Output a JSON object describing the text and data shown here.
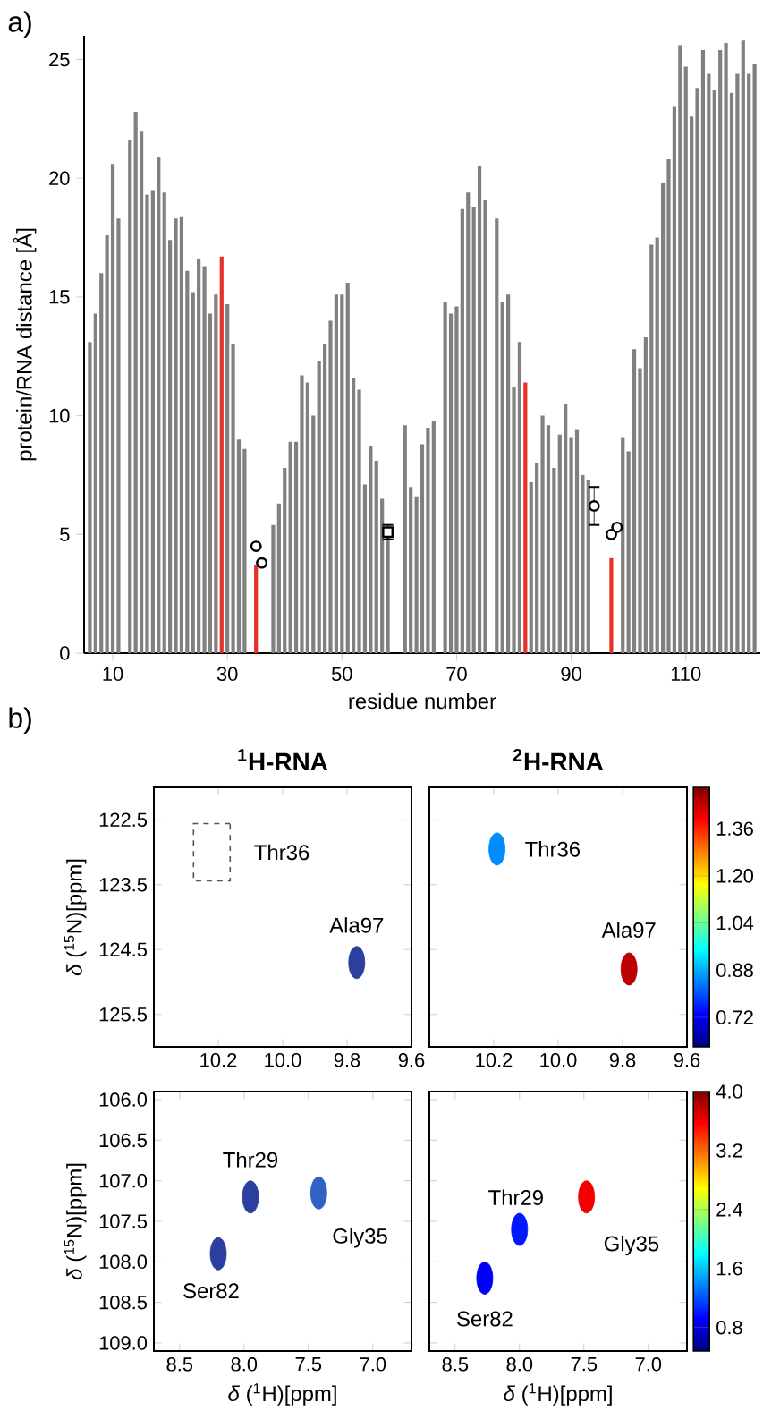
{
  "chart_data": [
    {
      "type": "bar",
      "xlabel": "residue number",
      "ylabel": "protein/RNA distance [Å]",
      "annotations": [
        "a)"
      ],
      "xlim": [
        5,
        123
      ],
      "xticks": [
        10,
        30,
        50,
        70,
        90,
        110
      ],
      "ylim": [
        0,
        26
      ],
      "yticks": [
        0,
        5,
        10,
        15,
        20,
        25
      ],
      "series": [
        {
          "x": [
            6,
            7,
            8,
            9,
            10,
            11,
            12,
            13,
            14,
            15,
            16,
            17,
            18,
            19,
            20,
            21,
            22,
            23,
            24,
            25,
            26,
            27,
            28,
            29,
            30,
            31,
            32,
            33,
            34,
            35,
            36,
            37,
            38,
            39,
            40,
            41,
            42,
            43,
            44,
            45,
            46,
            47,
            48,
            49,
            50,
            51,
            52,
            53,
            54,
            55,
            56,
            57,
            58,
            59,
            60,
            61,
            62,
            63,
            64,
            65,
            66,
            67,
            68,
            69,
            70,
            71,
            72,
            73,
            74,
            75,
            76,
            77,
            78,
            79,
            80,
            81,
            82,
            83,
            84,
            85,
            86,
            87,
            88,
            89,
            90,
            91,
            92,
            93,
            94,
            95,
            96,
            97,
            98,
            99,
            100,
            101,
            102,
            103,
            104,
            105,
            106,
            107,
            108,
            109,
            110,
            111,
            112,
            113,
            114,
            115,
            116,
            117,
            118,
            119,
            120,
            121,
            122
          ],
          "values": [
            13.1,
            14.3,
            16.0,
            17.6,
            20.6,
            18.3,
            null,
            21.6,
            22.8,
            22.0,
            19.3,
            19.5,
            20.9,
            19.4,
            17.4,
            18.3,
            18.4,
            16.1,
            15.2,
            16.6,
            16.3,
            14.3,
            15.1,
            16.7,
            14.7,
            13.0,
            9.0,
            8.6,
            null,
            3.7,
            null,
            null,
            5.4,
            6.3,
            7.8,
            8.9,
            8.9,
            11.7,
            11.4,
            10.0,
            12.3,
            13.0,
            14.0,
            15.1,
            15.1,
            15.6,
            11.6,
            11.1,
            7.1,
            8.7,
            8.1,
            6.5,
            5.0,
            null,
            null,
            9.6,
            7.0,
            6.6,
            8.8,
            9.5,
            9.8,
            null,
            14.8,
            14.3,
            14.6,
            18.7,
            19.4,
            18.8,
            20.5,
            19.1,
            null,
            18.3,
            14.8,
            15.1,
            11.2,
            13.1,
            11.4,
            7.2,
            8.0,
            10.0,
            9.6,
            7.8,
            9.2,
            10.5,
            9.1,
            9.4,
            7.5,
            7.3,
            null,
            null,
            null,
            4.0,
            null,
            9.1,
            8.5,
            12.8,
            12.0,
            13.3,
            17.2,
            17.5,
            19.8,
            20.8,
            23.0,
            25.6,
            24.7,
            22.6,
            23.8,
            25.4,
            24.4,
            23.7,
            25.4,
            25.7,
            23.6,
            24.4,
            25.8,
            24.4,
            24.8
          ],
          "colors": [
            "#808080",
            "#808080",
            "#808080",
            "#808080",
            "#808080",
            "#808080",
            "#808080",
            "#808080",
            "#808080",
            "#808080",
            "#808080",
            "#808080",
            "#808080",
            "#808080",
            "#808080",
            "#808080",
            "#808080",
            "#808080",
            "#808080",
            "#808080",
            "#808080",
            "#808080",
            "#808080",
            "#e8302a",
            "#808080",
            "#808080",
            "#808080",
            "#808080",
            "#808080",
            "#e8302a",
            "#808080",
            "#808080",
            "#808080",
            "#808080",
            "#808080",
            "#808080",
            "#808080",
            "#808080",
            "#808080",
            "#808080",
            "#808080",
            "#808080",
            "#808080",
            "#808080",
            "#808080",
            "#808080",
            "#808080",
            "#808080",
            "#808080",
            "#808080",
            "#808080",
            "#808080",
            "#808080",
            "#808080",
            "#808080",
            "#808080",
            "#808080",
            "#808080",
            "#808080",
            "#808080",
            "#808080",
            "#808080",
            "#808080",
            "#808080",
            "#808080",
            "#808080",
            "#808080",
            "#808080",
            "#808080",
            "#808080",
            "#808080",
            "#808080",
            "#808080",
            "#808080",
            "#808080",
            "#808080",
            "#e8302a",
            "#808080",
            "#808080",
            "#808080",
            "#808080",
            "#808080",
            "#808080",
            "#808080",
            "#808080",
            "#808080",
            "#808080",
            "#808080",
            "#808080",
            "#808080",
            "#808080",
            "#e8302a",
            "#808080",
            "#808080",
            "#808080",
            "#808080",
            "#808080",
            "#808080",
            "#808080",
            "#808080",
            "#808080",
            "#808080",
            "#808080",
            "#808080",
            "#808080",
            "#808080",
            "#808080",
            "#808080",
            "#808080",
            "#808080",
            "#808080",
            "#808080",
            "#808080",
            "#808080",
            "#808080",
            "#808080",
            "#808080"
          ]
        },
        {
          "type": "scatter",
          "marker": "circle",
          "color": "#000000",
          "x": [
            35,
            36,
            94,
            97,
            98
          ],
          "values": [
            4.5,
            3.8,
            6.2,
            5.0,
            5.3
          ],
          "errors": [
            null,
            null,
            0.8,
            null,
            null
          ]
        },
        {
          "type": "scatter",
          "marker": "square",
          "color": "#000000",
          "x": [
            58
          ],
          "values": [
            5.1
          ],
          "errors": [
            0.3
          ]
        }
      ]
    },
    {
      "type": "scatter",
      "title": "$^{1}$H-RNA",
      "ylabel": "*δ* ($^{15}$N)[ppm]",
      "marker": "circle",
      "xlim": [
        10.4,
        9.6
      ],
      "xticks": [
        10.2,
        {
          "value": 10,
          "label": "10.0"
        },
        9.8,
        9.6
      ],
      "ylim": [
        126.0,
        122.0
      ],
      "yticks": [
        122.5,
        123.5,
        124.5,
        125.5
      ],
      "annotations": [
        "b)"
      ],
      "series": [
        {
          "name": "Ala97",
          "x": [
            9.77
          ],
          "values": [
            124.7
          ],
          "color": "#2a3f9e"
        },
        {
          "name": "Thr36",
          "x": [
            10.22
          ],
          "values": [
            123.0
          ],
          "marker": "square",
          "line_style": "dashed",
          "color": "#555555"
        }
      ]
    },
    {
      "type": "scatter",
      "title": "$^{2}$H-RNA",
      "marker": "circle",
      "tick_labels": "x",
      "clim": [
        0.62,
        1.5
      ],
      "cticks": [
        0.72,
        0.88,
        1.04,
        {
          "value": 1.2,
          "label": "1.20"
        },
        1.36
      ],
      "xlim": [
        10.4,
        9.6
      ],
      "xticks": [
        10.2,
        {
          "value": 10,
          "label": "10.0"
        },
        9.8,
        9.6
      ],
      "ylim": [
        126.0,
        122.0
      ],
      "yticks": [
        122.5,
        123.5,
        124.5,
        125.5
      ],
      "series": [
        {
          "name": "Thr36",
          "x": [
            10.19
          ],
          "values": [
            122.95
          ],
          "cvalues": [
            0.85
          ]
        },
        {
          "name": "Ala97",
          "x": [
            9.78
          ],
          "values": [
            124.8
          ],
          "cvalues": [
            1.45
          ]
        }
      ]
    },
    {
      "type": "scatter",
      "xlabel": "*δ* ($^{1}$H)[ppm]",
      "ylabel": "*δ* ($^{15}$N)[ppm]",
      "marker": "circle",
      "xlim": [
        8.7,
        6.7
      ],
      "xticks": [
        8.5,
        {
          "value": 8,
          "label": "8.0"
        },
        7.5,
        {
          "value": 7,
          "label": "7.0"
        }
      ],
      "ylim": [
        109.1,
        105.9
      ],
      "yticks": [
        {
          "value": 106,
          "label": "106.0"
        },
        106.5,
        {
          "value": 107,
          "label": "107.0"
        },
        107.5,
        {
          "value": 108,
          "label": "108.0"
        },
        108.5,
        {
          "value": 109,
          "label": "109.0"
        }
      ],
      "series": [
        {
          "name": "Thr29",
          "x": [
            7.95
          ],
          "values": [
            107.2
          ],
          "color": "#2a3f9e"
        },
        {
          "name": "Ser82",
          "x": [
            8.2
          ],
          "values": [
            107.9
          ],
          "color": "#2a3f9e"
        },
        {
          "name": "Gly35",
          "x": [
            7.42
          ],
          "values": [
            107.15
          ],
          "color": "#2f62c4"
        }
      ]
    },
    {
      "type": "scatter",
      "xlabel": "*δ* ($^{1}$H)[ppm]",
      "marker": "circle",
      "tick_labels": "x",
      "clim": [
        0.48,
        4.0
      ],
      "cticks": [
        0.8,
        1.6,
        2.4,
        3.2,
        {
          "value": 4,
          "label": "4.0"
        }
      ],
      "xlim": [
        8.7,
        6.7
      ],
      "xticks": [
        8.5,
        {
          "value": 8,
          "label": "8.0"
        },
        7.5,
        {
          "value": 7,
          "label": "7.0"
        }
      ],
      "ylim": [
        109.1,
        105.9
      ],
      "yticks": [
        106,
        106.5,
        107,
        107.5,
        108,
        108.5,
        109
      ],
      "series": [
        {
          "name": "Thr29",
          "x": [
            8.0
          ],
          "values": [
            107.6
          ],
          "cvalues": [
            1.0
          ]
        },
        {
          "name": "Ser82",
          "x": [
            8.27
          ],
          "values": [
            108.2
          ],
          "cvalues": [
            0.9
          ]
        },
        {
          "name": "Gly35",
          "x": [
            7.48
          ],
          "values": [
            107.2
          ],
          "cvalues": [
            3.6
          ]
        }
      ]
    }
  ]
}
